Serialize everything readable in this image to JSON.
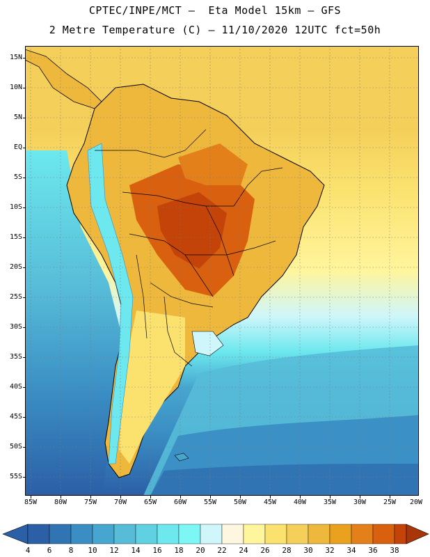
{
  "header": {
    "line1": "CPTEC/INPE/MCT –  Eta Model 15km – GFS",
    "line2": "2 Metre Temperature (C) – 11/10/2020 12UTC fct=50h"
  },
  "axes": {
    "lat_labels": [
      "15N",
      "10N",
      "5N",
      "EQ",
      "5S",
      "10S",
      "15S",
      "20S",
      "25S",
      "30S",
      "35S",
      "40S",
      "45S",
      "50S",
      "55S"
    ],
    "lon_labels": [
      "85W",
      "80W",
      "75W",
      "70W",
      "65W",
      "60W",
      "55W",
      "50W",
      "45W",
      "40W",
      "35W",
      "30W",
      "25W",
      "20W"
    ]
  },
  "colorbar": {
    "labels": [
      "4",
      "6",
      "8",
      "10",
      "12",
      "14",
      "16",
      "18",
      "20",
      "22",
      "24",
      "26",
      "28",
      "30",
      "32",
      "34",
      "36",
      "38"
    ],
    "colors": [
      "#2b5fa6",
      "#3174b4",
      "#3a8ec4",
      "#47a6cf",
      "#57bcd8",
      "#5fd1e1",
      "#6ce8ee",
      "#7cf7f6",
      "#cff6fa",
      "#fff6e0",
      "#fff59c",
      "#fbe26f",
      "#f4cf59",
      "#eeb83d",
      "#eaa11e",
      "#e3801a",
      "#d8600e",
      "#c44309",
      "#a83608"
    ],
    "units": "C"
  }
}
